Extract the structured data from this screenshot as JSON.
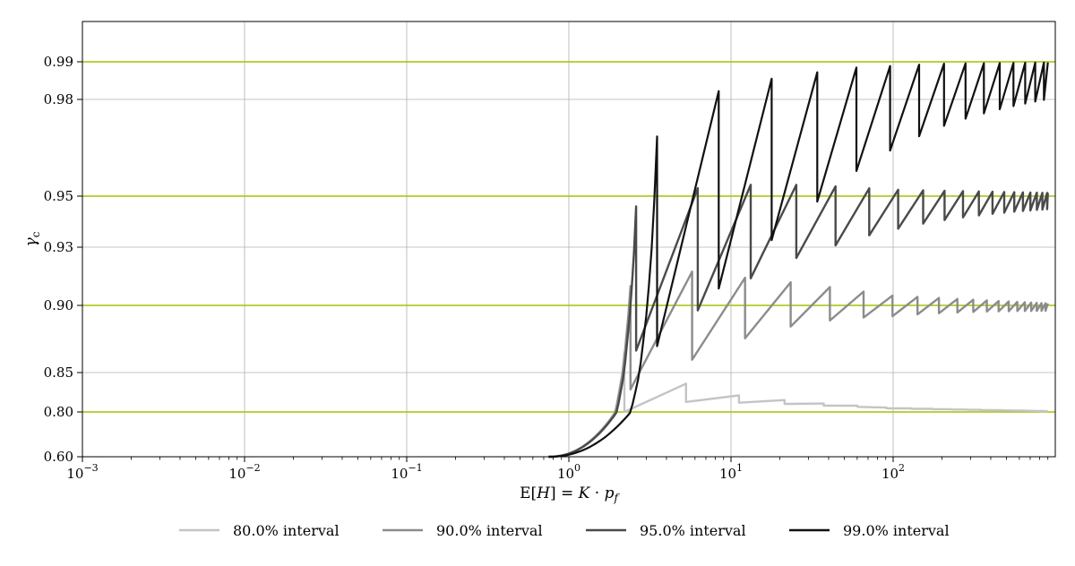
{
  "chart_data": {
    "type": "line",
    "xlabel": "E[H] = K · p_f",
    "ylabel": "γ_c",
    "x_scale": "log",
    "x_range": [
      0.001,
      900
    ],
    "y_scale": "piecewise (tick labels unevenly spaced)",
    "y_range": [
      0.6,
      0.995
    ],
    "x_ticks": [
      {
        "value": 0.001,
        "base": "10",
        "exp": "−3"
      },
      {
        "value": 0.01,
        "base": "10",
        "exp": "−2"
      },
      {
        "value": 0.1,
        "base": "10",
        "exp": "−1"
      },
      {
        "value": 1,
        "base": "10",
        "exp": "0"
      },
      {
        "value": 10,
        "base": "10",
        "exp": "1"
      },
      {
        "value": 100,
        "base": "10",
        "exp": "2"
      }
    ],
    "y_ticks": [
      "0.60",
      "0.80",
      "0.85",
      "0.90",
      "0.93",
      "0.95",
      "0.98",
      "0.99"
    ],
    "reference_lines": [
      0.8,
      0.9,
      0.95,
      0.99
    ],
    "reference_line_color": "#a8c000",
    "grid": true,
    "legend_position": "bottom-center",
    "series": [
      {
        "name": "80.0% interval",
        "target": 0.8,
        "color": "#c4c4c4",
        "envelope_points": [
          [
            1,
            0.605
          ],
          [
            2.2,
            0.865
          ],
          [
            4,
            0.842
          ],
          [
            10,
            0.822
          ],
          [
            30,
            0.812
          ],
          [
            100,
            0.805
          ],
          [
            900,
            0.801
          ]
        ],
        "dip_min": 0.8
      },
      {
        "name": "90.0% interval",
        "target": 0.9,
        "color": "#8c8c8c",
        "envelope_points": [
          [
            1,
            0.612
          ],
          [
            2.4,
            0.91
          ],
          [
            5,
            0.918
          ],
          [
            10,
            0.915
          ],
          [
            30,
            0.911
          ],
          [
            100,
            0.905
          ],
          [
            900,
            0.901
          ]
        ],
        "dip_min": 0.83
      },
      {
        "name": "95.0% interval",
        "target": 0.95,
        "color": "#4a4a4a",
        "envelope_points": [
          [
            1,
            0.62
          ],
          [
            2.6,
            0.946
          ],
          [
            5,
            0.952
          ],
          [
            10,
            0.9535
          ],
          [
            30,
            0.9535
          ],
          [
            100,
            0.952
          ],
          [
            900,
            0.951
          ]
        ],
        "dip_min": 0.868
      },
      {
        "name": "99.0% interval",
        "target": 0.99,
        "color": "#111111",
        "envelope_points": [
          [
            1,
            0.63
          ],
          [
            3.5,
            0.9685
          ],
          [
            8,
            0.982
          ],
          [
            20,
            0.986
          ],
          [
            60,
            0.9885
          ],
          [
            200,
            0.9895
          ],
          [
            900,
            0.9898
          ]
        ],
        "dip_min": 0.872
      }
    ]
  }
}
